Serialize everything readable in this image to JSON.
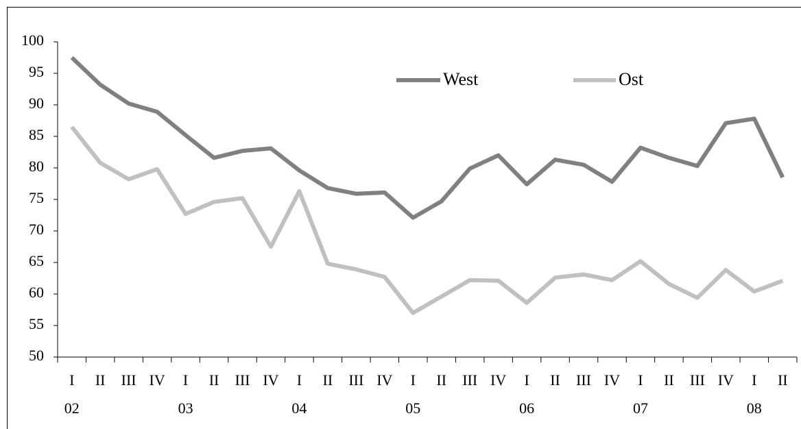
{
  "chart_data": {
    "type": "line",
    "categories": [
      "I",
      "II",
      "III",
      "IV",
      "I",
      "II",
      "III",
      "IV",
      "I",
      "II",
      "III",
      "IV",
      "I",
      "II",
      "III",
      "IV",
      "I",
      "II",
      "III",
      "IV",
      "I",
      "II",
      "III",
      "IV",
      "I",
      "II"
    ],
    "year_labels": [
      "02",
      null,
      null,
      null,
      "03",
      null,
      null,
      null,
      "04",
      null,
      null,
      null,
      "05",
      null,
      null,
      null,
      "06",
      null,
      null,
      null,
      "07",
      null,
      null,
      null,
      "08",
      null
    ],
    "series": [
      {
        "name": "West",
        "color": "#808080",
        "values": [
          97.5,
          93.2,
          90.2,
          88.9,
          85.2,
          81.6,
          82.7,
          83.1,
          79.6,
          76.8,
          75.9,
          76.1,
          72.1,
          74.7,
          79.9,
          82.0,
          77.4,
          81.3,
          80.5,
          77.8,
          83.2,
          81.6,
          80.3,
          87.1,
          87.8,
          78.5
        ]
      },
      {
        "name": "Ost",
        "color": "#c0c0c0",
        "values": [
          86.5,
          80.8,
          78.2,
          79.8,
          72.7,
          74.6,
          75.2,
          67.5,
          76.3,
          64.8,
          63.9,
          62.7,
          57.0,
          59.6,
          62.2,
          62.1,
          58.6,
          62.6,
          63.1,
          62.2,
          65.2,
          61.6,
          59.4,
          63.8,
          60.4,
          62.1
        ]
      }
    ],
    "ylim": [
      50,
      100
    ],
    "yticks": [
      50,
      55,
      60,
      65,
      70,
      75,
      80,
      85,
      90,
      95,
      100
    ],
    "grid": false
  }
}
